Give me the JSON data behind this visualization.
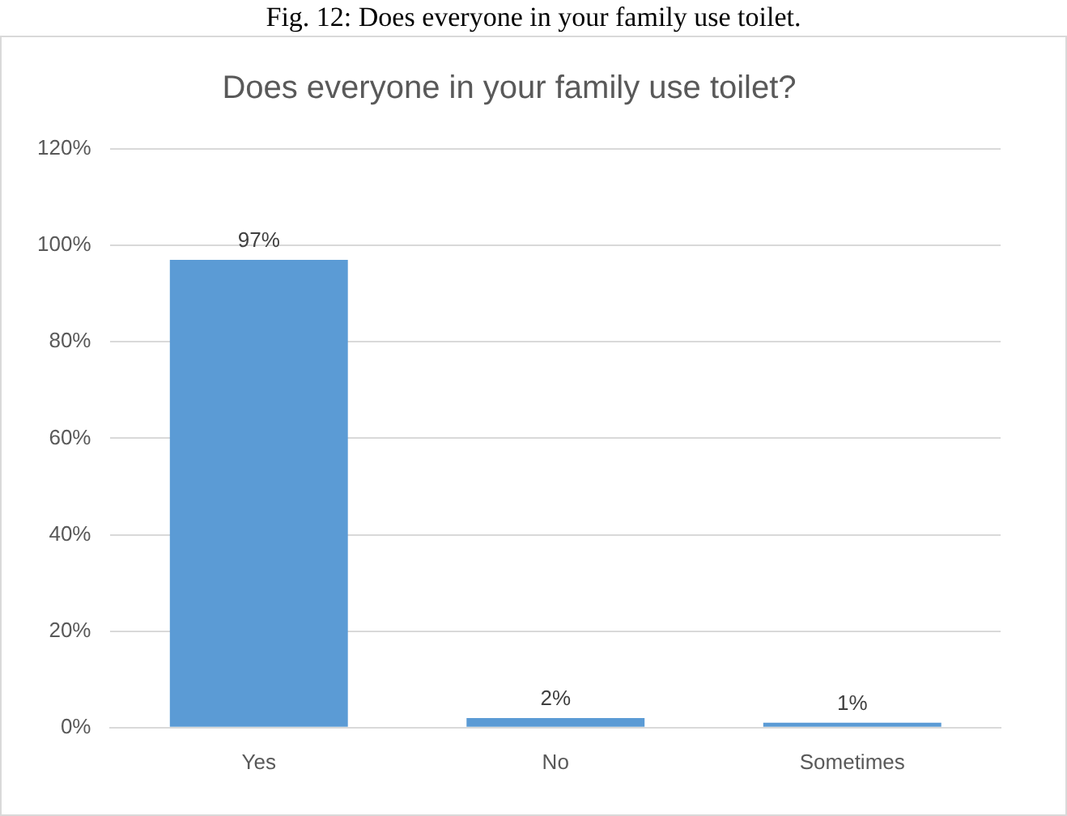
{
  "chart_data": {
    "type": "bar",
    "title": "Does everyone in your family use toilet?",
    "annotations": [
      "Fig. 12: Does everyone in your family use toilet."
    ],
    "categories": [
      "Yes",
      "No",
      "Sometimes"
    ],
    "values": [
      97,
      2,
      1
    ],
    "value_labels": [
      "97%",
      "2%",
      "1%"
    ],
    "color": "#5b9bd5",
    "ylim": [
      0,
      120
    ],
    "yticks": [
      {
        "value": 0,
        "label": "0%"
      },
      {
        "value": 20,
        "label": "20%"
      },
      {
        "value": 40,
        "label": "40%"
      },
      {
        "value": 60,
        "label": "60%"
      },
      {
        "value": 80,
        "label": "80%"
      },
      {
        "value": 100,
        "label": "100%"
      },
      {
        "value": 120,
        "label": "120%"
      }
    ],
    "grid": "y"
  }
}
